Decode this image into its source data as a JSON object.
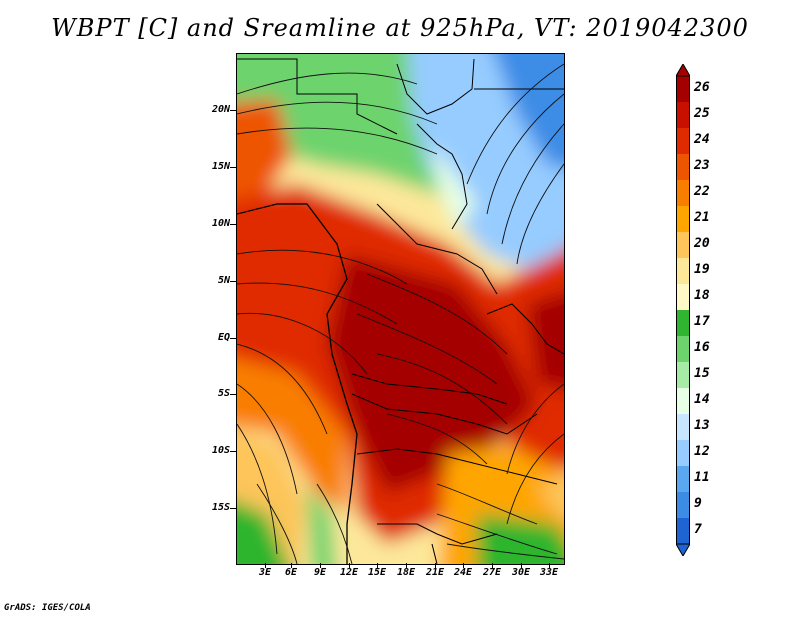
{
  "title": "WBPT [C] and Sreamline at 925hPa, VT: 2019042300",
  "lat_labels": [
    "20N",
    "15N",
    "10N",
    "5N",
    "EQ",
    "5S",
    "10S",
    "15S"
  ],
  "lon_labels": [
    "3E",
    "6E",
    "9E",
    "12E",
    "15E",
    "18E",
    "21E",
    "24E",
    "27E",
    "30E",
    "33E"
  ],
  "colorbar": {
    "labels": [
      "26",
      "25",
      "24",
      "23",
      "22",
      "21",
      "20",
      "19",
      "18",
      "17",
      "16",
      "15",
      "14",
      "13",
      "12",
      "11",
      "9",
      "7"
    ],
    "colors": [
      "#a50000",
      "#c81000",
      "#e02a00",
      "#ee5500",
      "#f97e00",
      "#ffa500",
      "#fdc55a",
      "#fde89a",
      "#fff9c8",
      "#2fb52f",
      "#6dd36d",
      "#a6eba6",
      "#e6ffe6",
      "#c8e6ff",
      "#96ccff",
      "#5aa8f0",
      "#3c8ce6",
      "#1e64d2"
    ]
  },
  "footer": "GrADS: IGES/COLA"
}
